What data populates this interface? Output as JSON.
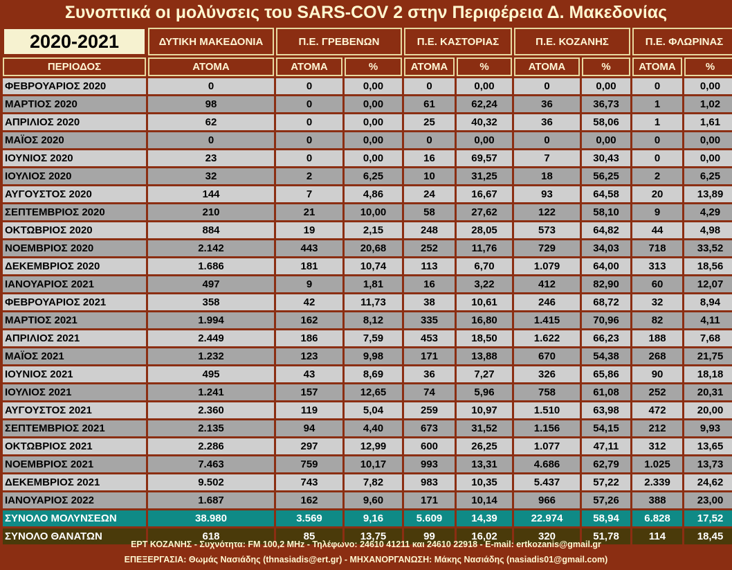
{
  "title": "Συνοπτικά οι μολύνσεις του SARS-COV 2 στην Περιφέρεια Δ. Μακεδονίας",
  "year_label": "2020-2021",
  "regions": [
    "ΔΥΤΙΚΗ ΜΑΚΕΔΟΝΙΑ",
    "Π.Ε. ΓΡΕΒΕΝΩΝ",
    "Π.Ε. ΚΑΣΤΟΡΙΑΣ",
    "Π.Ε. ΚΟΖΑΝΗΣ",
    "Π.Ε. ΦΛΩΡΙΝΑΣ"
  ],
  "columns": {
    "period": "ΠΕΡΙΟΔΟΣ",
    "people": "ΑΤΟΜΑ",
    "pct": "%"
  },
  "rows": [
    [
      "ΦΕΒΡΟΥΑΡΙΟΣ 2020",
      "0",
      "0",
      "0,00",
      "0",
      "0,00",
      "0",
      "0,00",
      "0",
      "0,00"
    ],
    [
      "ΜΑΡΤΙΟΣ 2020",
      "98",
      "0",
      "0,00",
      "61",
      "62,24",
      "36",
      "36,73",
      "1",
      "1,02"
    ],
    [
      "ΑΠΡΙΛΙΟΣ 2020",
      "62",
      "0",
      "0,00",
      "25",
      "40,32",
      "36",
      "58,06",
      "1",
      "1,61"
    ],
    [
      "ΜΑΪΟΣ 2020",
      "0",
      "0",
      "0,00",
      "0",
      "0,00",
      "0",
      "0,00",
      "0",
      "0,00"
    ],
    [
      "ΙΟΥΝΙΟΣ 2020",
      "23",
      "0",
      "0,00",
      "16",
      "69,57",
      "7",
      "30,43",
      "0",
      "0,00"
    ],
    [
      "ΙΟΥΛΙΟΣ 2020",
      "32",
      "2",
      "6,25",
      "10",
      "31,25",
      "18",
      "56,25",
      "2",
      "6,25"
    ],
    [
      "ΑΥΓΟΥΣΤΟΣ 2020",
      "144",
      "7",
      "4,86",
      "24",
      "16,67",
      "93",
      "64,58",
      "20",
      "13,89"
    ],
    [
      "ΣΕΠΤΕΜΒΡΙΟΣ 2020",
      "210",
      "21",
      "10,00",
      "58",
      "27,62",
      "122",
      "58,10",
      "9",
      "4,29"
    ],
    [
      "ΟΚΤΩΒΡΙΟΣ 2020",
      "884",
      "19",
      "2,15",
      "248",
      "28,05",
      "573",
      "64,82",
      "44",
      "4,98"
    ],
    [
      "ΝΟΕΜΒΡΙΟΣ 2020",
      "2.142",
      "443",
      "20,68",
      "252",
      "11,76",
      "729",
      "34,03",
      "718",
      "33,52"
    ],
    [
      "ΔΕΚΕΜΒΡΙΟΣ 2020",
      "1.686",
      "181",
      "10,74",
      "113",
      "6,70",
      "1.079",
      "64,00",
      "313",
      "18,56"
    ],
    [
      "ΙΑΝΟΥΑΡΙΟΣ 2021",
      "497",
      "9",
      "1,81",
      "16",
      "3,22",
      "412",
      "82,90",
      "60",
      "12,07"
    ],
    [
      "ΦΕΒΡΟΥΑΡΙΟΣ 2021",
      "358",
      "42",
      "11,73",
      "38",
      "10,61",
      "246",
      "68,72",
      "32",
      "8,94"
    ],
    [
      "ΜΑΡΤΙΟΣ 2021",
      "1.994",
      "162",
      "8,12",
      "335",
      "16,80",
      "1.415",
      "70,96",
      "82",
      "4,11"
    ],
    [
      "ΑΠΡΙΛΙΟΣ 2021",
      "2.449",
      "186",
      "7,59",
      "453",
      "18,50",
      "1.622",
      "66,23",
      "188",
      "7,68"
    ],
    [
      "ΜΑΪΟΣ 2021",
      "1.232",
      "123",
      "9,98",
      "171",
      "13,88",
      "670",
      "54,38",
      "268",
      "21,75"
    ],
    [
      "ΙΟΥΝΙΟΣ 2021",
      "495",
      "43",
      "8,69",
      "36",
      "7,27",
      "326",
      "65,86",
      "90",
      "18,18"
    ],
    [
      "ΙΟΥΛΙΟΣ 2021",
      "1.241",
      "157",
      "12,65",
      "74",
      "5,96",
      "758",
      "61,08",
      "252",
      "20,31"
    ],
    [
      "ΑΥΓΟΥΣΤΟΣ 2021",
      "2.360",
      "119",
      "5,04",
      "259",
      "10,97",
      "1.510",
      "63,98",
      "472",
      "20,00"
    ],
    [
      "ΣΕΠΤΕΜΒΡΙΟΣ 2021",
      "2.135",
      "94",
      "4,40",
      "673",
      "31,52",
      "1.156",
      "54,15",
      "212",
      "9,93"
    ],
    [
      "ΟΚΤΩΒΡΙΟΣ 2021",
      "2.286",
      "297",
      "12,99",
      "600",
      "26,25",
      "1.077",
      "47,11",
      "312",
      "13,65"
    ],
    [
      "ΝΟΕΜΒΡΙΟΣ 2021",
      "7.463",
      "759",
      "10,17",
      "993",
      "13,31",
      "4.686",
      "62,79",
      "1.025",
      "13,73"
    ],
    [
      "ΔΕΚΕΜΒΡΙΟΣ 2021",
      "9.502",
      "743",
      "7,82",
      "983",
      "10,35",
      "5.437",
      "57,22",
      "2.339",
      "24,62"
    ],
    [
      "ΙΑΝΟΥΑΡΙΟΣ 2022",
      "1.687",
      "162",
      "9,60",
      "171",
      "10,14",
      "966",
      "57,26",
      "388",
      "23,00"
    ]
  ],
  "total_infections": [
    "ΣΥΝΟΛΟ ΜΟΛΥΝΣΕΩΝ",
    "38.980",
    "3.569",
    "9,16",
    "5.609",
    "14,39",
    "22.974",
    "58,94",
    "6.828",
    "17,52"
  ],
  "total_deaths": [
    "ΣΥΝΟΛΟ ΘΑΝΑΤΩΝ",
    "618",
    "85",
    "13,75",
    "99",
    "16,02",
    "320",
    "51,78",
    "114",
    "18,45"
  ],
  "footer": {
    "line1": "ΕΡΤ ΚΟΖΑΝΗΣ - Συχνότητα:  FM 100,2 MHz - Τηλέφωνο: 24610 41211 και 24610 22918 - E-mail: ertkozanis@gmail.gr",
    "line2": "ΕΠΕΞΕΡΓΑΣΙΑ: Θωμάς Νασιάδης (thnasiadis@ert.gr) - ΜΗΧΑΝΟΡΓΑΝΩΣΗ: Μάκης Νασιάδης (nasiadis01@gmail.com)"
  },
  "colors": {
    "frame": "#8b2e12",
    "row_light": "#cfcfcf",
    "row_dark": "#a6a6a6",
    "total_infections": "#0f8a86",
    "total_deaths": "#4a3a0a"
  }
}
